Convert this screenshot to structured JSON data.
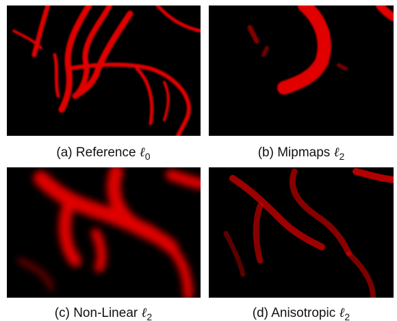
{
  "figure": {
    "panels": [
      {
        "caption": "(a) Reference",
        "symbol": "ℓ",
        "subscript": "0"
      },
      {
        "caption": "(b) Mipmaps",
        "symbol": "ℓ",
        "subscript": "2"
      },
      {
        "caption": "(c) Non-Linear",
        "symbol": "ℓ",
        "subscript": "2"
      },
      {
        "caption": "(d) Anisotropic",
        "symbol": "ℓ",
        "subscript": "2"
      }
    ]
  }
}
